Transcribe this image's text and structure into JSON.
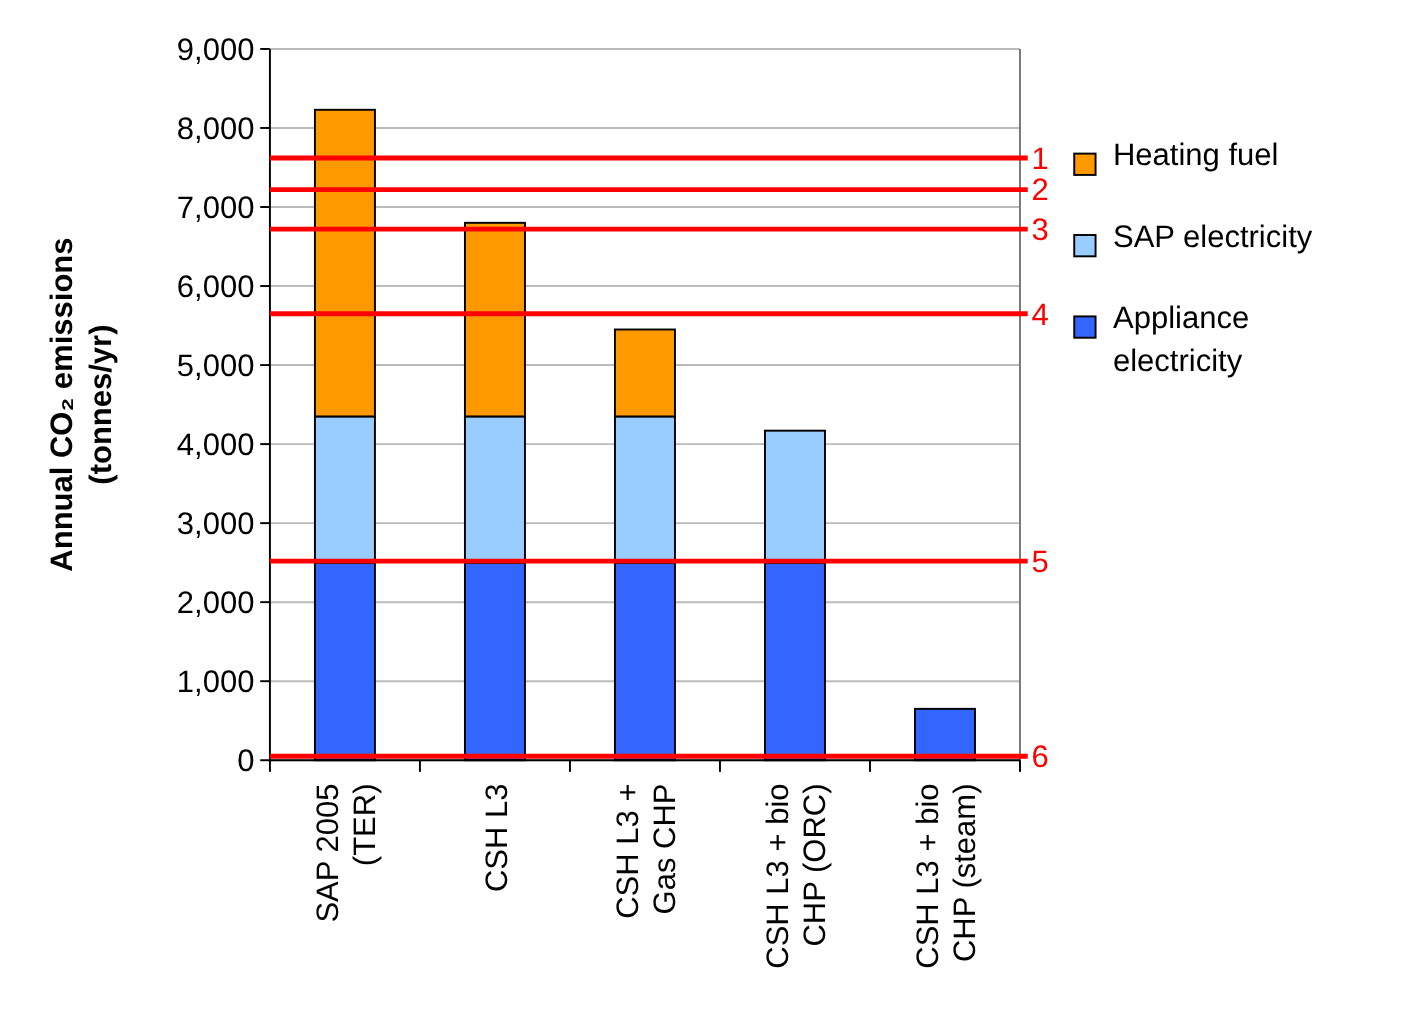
{
  "chart_data": {
    "type": "bar",
    "stacked": true,
    "ylabel": "Annual CO₂ emissions\n(tonnes/yr)",
    "categories": [
      "SAP 2005\n(TER)",
      "CSH L3",
      "CSH L3 +\nGas CHP",
      "CSH L3 + bio\nCHP (ORC)",
      "CSH L3 + bio\nCHP (steam)"
    ],
    "series": [
      {
        "name": "Appliance electricity",
        "color": "#3366ff",
        "values": [
          2500,
          2500,
          2500,
          2500,
          650
        ]
      },
      {
        "name": "SAP electricity",
        "color": "#99ccff",
        "values": [
          1850,
          1850,
          1850,
          1670,
          null
        ]
      },
      {
        "name": "Heating fuel",
        "color": "#ff9900",
        "values": [
          3880,
          2450,
          1100,
          null,
          null
        ]
      }
    ],
    "ylim": [
      0,
      9000
    ],
    "yticks": [
      {
        "value": 0,
        "label": "0"
      },
      {
        "value": 1000,
        "label": "1,000"
      },
      {
        "value": 2000,
        "label": "2,000"
      },
      {
        "value": 3000,
        "label": "3,000"
      },
      {
        "value": 4000,
        "label": "4,000"
      },
      {
        "value": 5000,
        "label": "5,000"
      },
      {
        "value": 6000,
        "label": "6,000"
      },
      {
        "value": 7000,
        "label": "7,000"
      },
      {
        "value": 8000,
        "label": "8,000"
      },
      {
        "value": 9000,
        "label": "9,000"
      }
    ],
    "grid": "y",
    "legend": "right",
    "ref_lines": [
      {
        "axis": "y",
        "value": 7620,
        "color": "#ff0000"
      },
      {
        "axis": "y",
        "value": 7220,
        "color": "#ff0000"
      },
      {
        "axis": "y",
        "value": 6720,
        "color": "#ff0000"
      },
      {
        "axis": "y",
        "value": 5650,
        "color": "#ff0000"
      },
      {
        "axis": "y",
        "value": 2520,
        "color": "#ff0000"
      },
      {
        "axis": "y",
        "value": 50,
        "color": "#ff0000"
      }
    ],
    "annotations": [
      "1",
      "2",
      "3",
      "4",
      "5",
      "6"
    ]
  }
}
